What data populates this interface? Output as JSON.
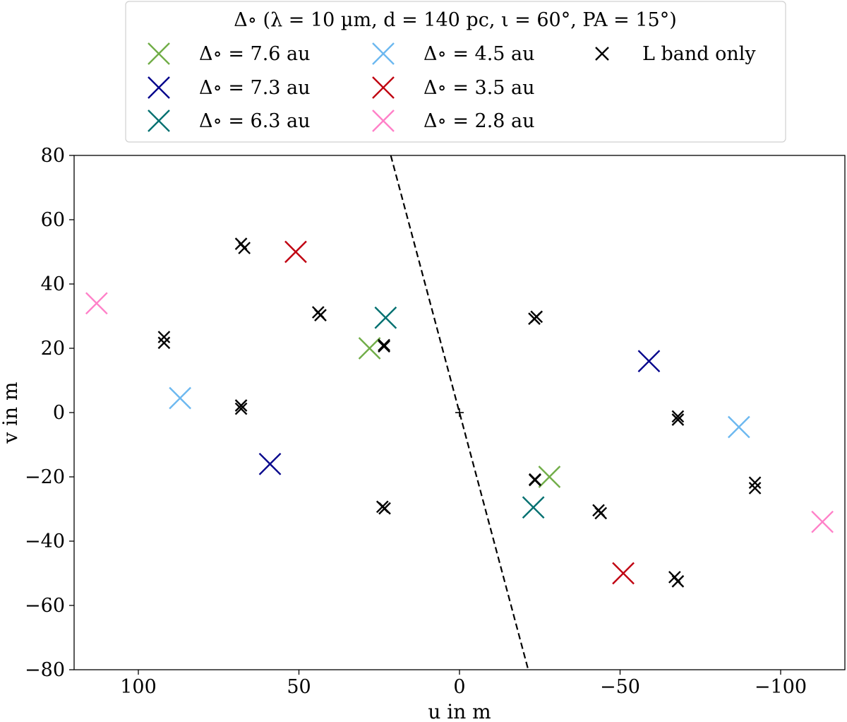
{
  "chart_data": {
    "type": "scatter",
    "title": "",
    "xlabel": "u in m",
    "ylabel": "v in m",
    "xlim": [
      120,
      -120
    ],
    "ylim": [
      -80,
      80
    ],
    "xticks": [
      100,
      50,
      0,
      -50,
      -100
    ],
    "yticks": [
      80,
      60,
      40,
      20,
      0,
      -20,
      -40,
      -60,
      -80
    ],
    "xtick_labels": [
      "100",
      "50",
      "0",
      "−50",
      "−100"
    ],
    "ytick_labels": [
      "80",
      "60",
      "40",
      "20",
      "0",
      "−20",
      "−40",
      "−60",
      "−80"
    ],
    "legend": {
      "title": "Δ∘ (λ = 10 µm, d = 140 pc, ι = 60°, PA = 15°)",
      "placement": "above-plot",
      "ncol": 3
    },
    "series": [
      {
        "name": "Δ∘ = 7.6 au",
        "color": "#70ad47",
        "marker": "large-x",
        "points": [
          [
            28,
            20
          ],
          [
            -28,
            -20
          ]
        ]
      },
      {
        "name": "Δ∘ = 7.3 au",
        "color": "#00008b",
        "marker": "large-x",
        "points": [
          [
            59,
            -16
          ],
          [
            -59,
            16
          ]
        ]
      },
      {
        "name": "Δ∘ = 6.3 au",
        "color": "#007070",
        "marker": "large-x",
        "points": [
          [
            23,
            29.5
          ],
          [
            -23,
            -29.5
          ]
        ]
      },
      {
        "name": "Δ∘ = 4.5 au",
        "color": "#6cb8f0",
        "marker": "large-x",
        "points": [
          [
            87,
            4.5
          ],
          [
            -87,
            -4.5
          ]
        ]
      },
      {
        "name": "Δ∘ = 3.5 au",
        "color": "#c00010",
        "marker": "large-x",
        "points": [
          [
            51,
            50
          ],
          [
            -51,
            -50
          ]
        ]
      },
      {
        "name": "Δ∘ = 2.8 au",
        "color": "#ff80c8",
        "marker": "large-x",
        "points": [
          [
            113,
            34
          ],
          [
            -113,
            -34
          ]
        ]
      },
      {
        "name": "L band only",
        "color": "#000000",
        "marker": "small-x",
        "points": [
          [
            68,
            52.5
          ],
          [
            67,
            51.2
          ],
          [
            44,
            31.2
          ],
          [
            43.3,
            30.3
          ],
          [
            23.5,
            21
          ],
          [
            23.5,
            20.6
          ],
          [
            92,
            23.5
          ],
          [
            92,
            21.7
          ],
          [
            68,
            2.2
          ],
          [
            68,
            1.2
          ],
          [
            24,
            -29.3
          ],
          [
            23.3,
            -29.8
          ],
          [
            -24,
            29.8
          ],
          [
            -23.3,
            29.2
          ],
          [
            -23.5,
            -20.8
          ],
          [
            -23.5,
            -21
          ],
          [
            -43.3,
            -30.4
          ],
          [
            -44,
            -31.3
          ],
          [
            -68,
            -1.2
          ],
          [
            -68,
            -2.2
          ],
          [
            -92,
            -21.8
          ],
          [
            -92,
            -23.5
          ],
          [
            -67,
            -51.2
          ],
          [
            -68,
            -52.5
          ]
        ]
      }
    ],
    "center_marker": {
      "u": 0,
      "v": 0
    },
    "dashed_line": {
      "u1": 21.4,
      "v1": 80,
      "u2": -21.4,
      "v2": -80
    }
  }
}
